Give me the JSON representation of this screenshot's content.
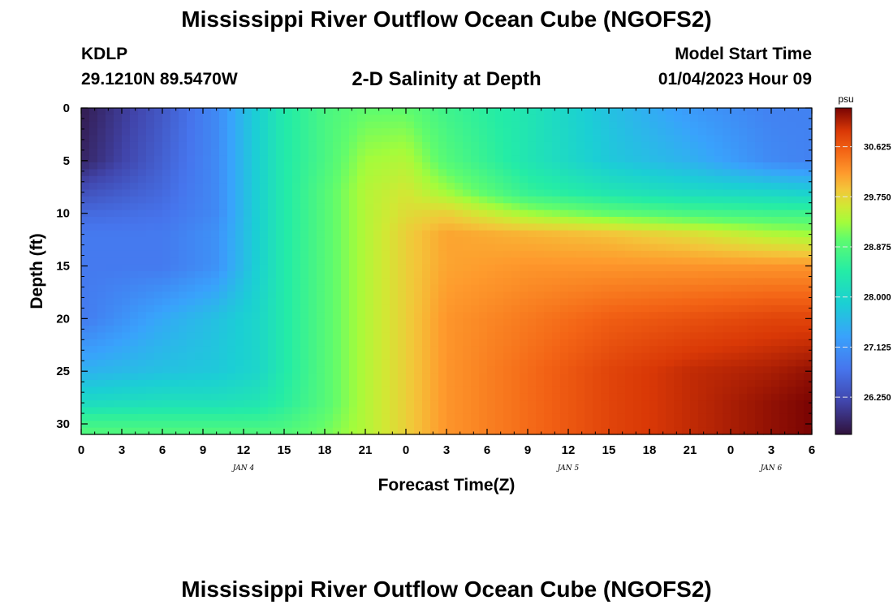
{
  "header": {
    "title": "Mississippi River Outflow Ocean Cube (NGOFS2)",
    "station": "KDLP",
    "coords": "29.1210N  89.5470W",
    "subtitle": "2-D Salinity at Depth",
    "model_start_label": "Model Start Time",
    "model_start_value": "01/04/2023 Hour 09"
  },
  "footer": {
    "title": "Mississippi River Outflow Ocean Cube (NGOFS2)"
  },
  "chart_data": {
    "type": "heatmap",
    "xlabel": "Forecast Time(Z)",
    "ylabel": "Depth (ft)",
    "x_tick_labels": [
      "0",
      "3",
      "6",
      "9",
      "12",
      "15",
      "18",
      "21",
      "0",
      "3",
      "6",
      "9",
      "12",
      "15",
      "18",
      "21",
      "0",
      "3",
      "6"
    ],
    "x_day_labels": [
      {
        "label": "JAN 4",
        "hour": 12
      },
      {
        "label": "JAN 5",
        "hour": 36
      },
      {
        "label": "JAN 6",
        "hour": 51
      }
    ],
    "x_range_hours": [
      0,
      54
    ],
    "y_tick_labels": [
      "0",
      "5",
      "10",
      "15",
      "20",
      "25",
      "30"
    ],
    "y_range_ft": [
      0,
      31
    ],
    "colorbar": {
      "unit": "psu",
      "tick_labels": [
        "30.625",
        "29.750",
        "28.875",
        "28.000",
        "27.125",
        "26.250"
      ],
      "range": [
        25.6,
        31.3
      ]
    },
    "depths_ft": [
      0,
      5,
      8,
      10,
      12,
      15,
      20,
      25,
      28,
      29.5,
      31
    ],
    "times_h": [
      0,
      6,
      10,
      13,
      15,
      18,
      21,
      24,
      27,
      33,
      39,
      45,
      51,
      54
    ],
    "salinity_psu": [
      [
        25.7,
        26.4,
        27.0,
        27.9,
        28.4,
        28.8,
        29.0,
        29.0,
        28.7,
        28.3,
        27.7,
        27.2,
        26.9,
        26.9
      ],
      [
        25.8,
        26.5,
        27.0,
        27.9,
        28.4,
        28.8,
        29.3,
        29.4,
        28.9,
        28.3,
        27.8,
        27.5,
        27.0,
        26.9
      ],
      [
        26.3,
        26.6,
        27.0,
        27.9,
        28.4,
        28.9,
        29.4,
        29.6,
        29.3,
        28.6,
        28.3,
        28.1,
        28.0,
        27.9
      ],
      [
        26.6,
        26.7,
        27.0,
        27.9,
        28.4,
        28.9,
        29.4,
        29.7,
        29.8,
        29.3,
        29.0,
        28.8,
        28.7,
        28.7
      ],
      [
        26.8,
        26.8,
        27.1,
        27.9,
        28.4,
        28.9,
        29.4,
        29.8,
        30.1,
        30.0,
        29.9,
        29.7,
        29.4,
        29.3
      ],
      [
        26.8,
        26.8,
        27.1,
        27.9,
        28.4,
        28.9,
        29.4,
        29.8,
        30.1,
        30.2,
        30.2,
        30.2,
        30.2,
        30.2
      ],
      [
        26.8,
        27.4,
        27.7,
        28.0,
        28.4,
        28.9,
        29.4,
        29.8,
        30.2,
        30.4,
        30.6,
        30.7,
        30.8,
        30.8
      ],
      [
        27.5,
        27.7,
        27.8,
        28.0,
        28.4,
        28.9,
        29.4,
        29.8,
        30.2,
        30.5,
        30.8,
        31.0,
        31.1,
        31.2
      ],
      [
        28.1,
        28.2,
        28.2,
        28.3,
        28.5,
        28.9,
        29.4,
        29.8,
        30.2,
        30.5,
        30.8,
        31.0,
        31.2,
        31.3
      ],
      [
        28.6,
        28.6,
        28.6,
        28.6,
        28.7,
        29.0,
        29.4,
        29.8,
        30.2,
        30.5,
        30.8,
        31.0,
        31.2,
        31.3
      ],
      [
        28.9,
        28.9,
        28.9,
        28.9,
        28.9,
        29.1,
        29.4,
        29.8,
        30.2,
        30.5,
        30.8,
        31.0,
        31.2,
        31.3
      ]
    ]
  }
}
